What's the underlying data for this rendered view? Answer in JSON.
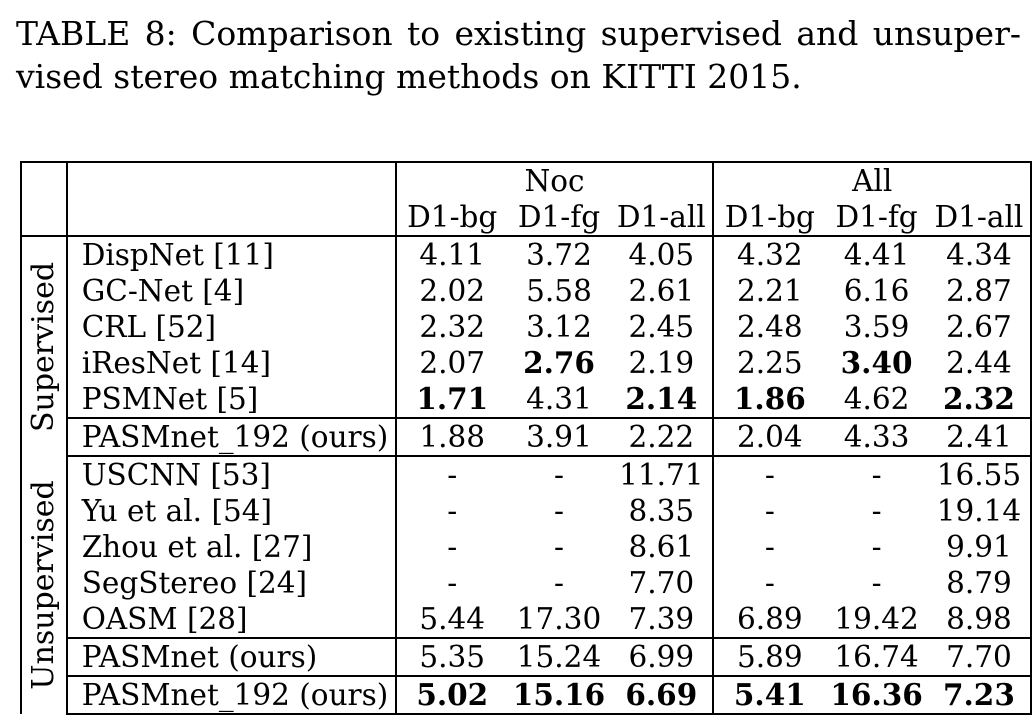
{
  "caption": {
    "line1": "TABLE 8: Comparison to existing supervised and unsuper-",
    "line2": "vised stereo matching methods on KITTI 2015."
  },
  "table": {
    "group_headers": [
      "Noc",
      "All"
    ],
    "sub_headers": [
      "D1-bg",
      "D1-fg",
      "D1-all",
      "D1-bg",
      "D1-fg",
      "D1-all"
    ],
    "groups": [
      {
        "label": "Supervised",
        "rows": [
          {
            "method": "DispNet [11]",
            "values": [
              "4.11",
              "3.72",
              "4.05",
              "4.32",
              "4.41",
              "4.34"
            ],
            "bold": [
              false,
              false,
              false,
              false,
              false,
              false
            ]
          },
          {
            "method": "GC-Net [4]",
            "values": [
              "2.02",
              "5.58",
              "2.61",
              "2.21",
              "6.16",
              "2.87"
            ],
            "bold": [
              false,
              false,
              false,
              false,
              false,
              false
            ]
          },
          {
            "method": "CRL [52]",
            "values": [
              "2.32",
              "3.12",
              "2.45",
              "2.48",
              "3.59",
              "2.67"
            ],
            "bold": [
              false,
              false,
              false,
              false,
              false,
              false
            ]
          },
          {
            "method": "iResNet [14]",
            "values": [
              "2.07",
              "2.76",
              "2.19",
              "2.25",
              "3.40",
              "2.44"
            ],
            "bold": [
              false,
              true,
              false,
              false,
              true,
              false
            ]
          },
          {
            "method": "PSMNet [5]",
            "values": [
              "1.71",
              "4.31",
              "2.14",
              "1.86",
              "4.62",
              "2.32"
            ],
            "bold": [
              true,
              false,
              true,
              true,
              false,
              true
            ]
          },
          {
            "method": "PASMnet_192 (ours)",
            "values": [
              "1.88",
              "3.91",
              "2.22",
              "2.04",
              "4.33",
              "2.41"
            ],
            "bold": [
              false,
              false,
              false,
              false,
              false,
              false
            ]
          }
        ]
      },
      {
        "label": "Unsupervised",
        "rows": [
          {
            "method": "USCNN [53]",
            "values": [
              "-",
              "-",
              "11.71",
              "-",
              "-",
              "16.55"
            ],
            "bold": [
              false,
              false,
              false,
              false,
              false,
              false
            ]
          },
          {
            "method": "Yu et al. [54]",
            "values": [
              "-",
              "-",
              "8.35",
              "-",
              "-",
              "19.14"
            ],
            "bold": [
              false,
              false,
              false,
              false,
              false,
              false
            ]
          },
          {
            "method": "Zhou et al. [27]",
            "values": [
              "-",
              "-",
              "8.61",
              "-",
              "-",
              "9.91"
            ],
            "bold": [
              false,
              false,
              false,
              false,
              false,
              false
            ]
          },
          {
            "method": "SegStereo [24]",
            "values": [
              "-",
              "-",
              "7.70",
              "-",
              "-",
              "8.79"
            ],
            "bold": [
              false,
              false,
              false,
              false,
              false,
              false
            ]
          },
          {
            "method": "OASM [28]",
            "values": [
              "5.44",
              "17.30",
              "7.39",
              "6.89",
              "19.42",
              "8.98"
            ],
            "bold": [
              false,
              false,
              false,
              false,
              false,
              false
            ]
          },
          {
            "method": "PASMnet (ours)",
            "values": [
              "5.35",
              "15.24",
              "6.99",
              "5.89",
              "16.74",
              "7.70"
            ],
            "bold": [
              false,
              false,
              false,
              false,
              false,
              false
            ]
          },
          {
            "method": "PASMnet_192 (ours)",
            "values": [
              "5.02",
              "15.16",
              "6.69",
              "5.41",
              "16.36",
              "7.23"
            ],
            "bold": [
              true,
              true,
              true,
              true,
              true,
              true
            ]
          }
        ]
      }
    ]
  }
}
